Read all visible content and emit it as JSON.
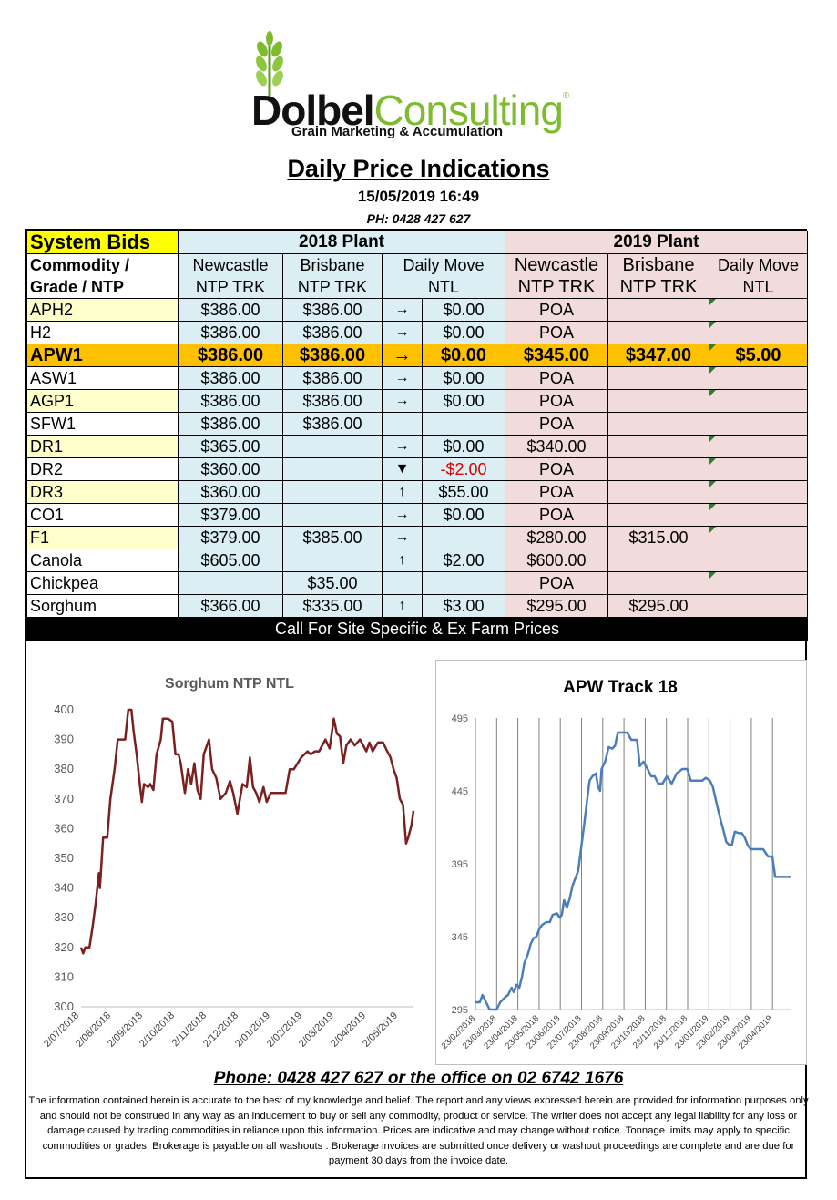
{
  "logo": {
    "brand_bold": "Dolbel",
    "brand_light": "Consulting",
    "reg": "®",
    "tagline": "Grain Marketing & Accumulation"
  },
  "title": "Daily Price Indications",
  "datetime": "15/05/2019 16:49",
  "phone_top": "PH: 0428 427 627",
  "table": {
    "system_bids": "System Bids",
    "plant_2018": "2018 Plant",
    "plant_2019": "2019 Plant",
    "commodity_header": "Commodity / Grade / NTP",
    "col_newcastle_2018": "Newcastle NTP TRK",
    "col_brisbane_2018": "Brisbane NTP TRK",
    "col_daily_move_2018": "Daily  Move NTL",
    "col_newcastle_2019": "Newcastle NTP TRK",
    "col_brisbane_2019": "Brisbane NTP TRK",
    "col_daily_move_2019": "Daily Move NTL",
    "rows": [
      {
        "grade": "APH2",
        "n18": "$386.00",
        "b18": "$386.00",
        "arrow": "→",
        "move": "$0.00",
        "n19": "POA",
        "b19": "",
        "m19": "",
        "style": "yel"
      },
      {
        "grade": "H2",
        "n18": "$386.00",
        "b18": "$386.00",
        "arrow": "→",
        "move": "$0.00",
        "n19": "POA",
        "b19": "",
        "m19": "",
        "style": "white"
      },
      {
        "grade": "APW1",
        "n18": "$386.00",
        "b18": "$386.00",
        "arrow": "→",
        "move": "$0.00",
        "n19": "$345.00",
        "b19": "$347.00",
        "m19": "$5.00",
        "style": "apw"
      },
      {
        "grade": "ASW1",
        "n18": "$386.00",
        "b18": "$386.00",
        "arrow": "→",
        "move": "$0.00",
        "n19": "POA",
        "b19": "",
        "m19": "",
        "style": "white"
      },
      {
        "grade": "AGP1",
        "n18": "$386.00",
        "b18": "$386.00",
        "arrow": "→",
        "move": "$0.00",
        "n19": "POA",
        "b19": "",
        "m19": "",
        "style": "yel"
      },
      {
        "grade": "SFW1",
        "n18": "$386.00",
        "b18": "$386.00",
        "arrow": "",
        "move": "",
        "n19": "POA",
        "b19": "",
        "m19": "",
        "style": "white"
      },
      {
        "grade": "DR1",
        "n18": "$365.00",
        "b18": "",
        "arrow": "→",
        "move": "$0.00",
        "n19": "$340.00",
        "b19": "",
        "m19": "",
        "style": "yel"
      },
      {
        "grade": "DR2",
        "n18": "$360.00",
        "b18": "",
        "arrow": "▼",
        "move": "-$2.00",
        "n19": "POA",
        "b19": "",
        "m19": "",
        "style": "white",
        "neg": true
      },
      {
        "grade": "DR3",
        "n18": "$360.00",
        "b18": "",
        "arrow": "↑",
        "move": "$55.00",
        "n19": "POA",
        "b19": "",
        "m19": "",
        "style": "yel"
      },
      {
        "grade": "CO1",
        "n18": "$379.00",
        "b18": "",
        "arrow": "→",
        "move": "$0.00",
        "n19": "POA",
        "b19": "",
        "m19": "",
        "style": "white"
      },
      {
        "grade": "F1",
        "n18": "$379.00",
        "b18": "$385.00",
        "arrow": "→",
        "move": "",
        "n19": "$280.00",
        "b19": "$315.00",
        "m19": "",
        "style": "yel"
      },
      {
        "grade": "Canola",
        "n18": "$605.00",
        "b18": "",
        "arrow": "↑",
        "move": "$2.00",
        "n19": "$600.00",
        "b19": "",
        "m19": "",
        "style": "white"
      },
      {
        "grade": "Chickpea",
        "n18": "",
        "b18": "$35.00",
        "arrow": "",
        "move": "",
        "n19": "POA",
        "b19": "",
        "m19": "",
        "style": "white"
      },
      {
        "grade": "Sorghum",
        "n18": "$366.00",
        "b18": "$335.00",
        "arrow": "↑",
        "move": "$3.00",
        "n19": "$295.00",
        "b19": "$295.00",
        "m19": "",
        "style": "white"
      }
    ],
    "call_bar": "Call For Site Specific & Ex Farm Prices"
  },
  "colors": {
    "sorghum_line": "#7b1f1f",
    "apw_line": "#4a7ebb",
    "highlight": "#ffc000",
    "blue": "#daeef3",
    "pink": "#f2dcdb",
    "yellow_cell": "#ffffcc"
  },
  "chart_data": [
    {
      "type": "line",
      "title": "Sorghum NTP NTL",
      "ylim": [
        300,
        400
      ],
      "yticks": [
        300,
        310,
        320,
        330,
        340,
        350,
        360,
        370,
        380,
        390,
        400
      ],
      "xtick_labels": [
        "2/07/2018",
        "2/08/2018",
        "2/09/2018",
        "2/10/2018",
        "2/11/2018",
        "2/12/2018",
        "2/01/2019",
        "2/02/2019",
        "2/03/2019",
        "2/04/2019",
        "2/05/2019"
      ],
      "x_start": "2018-07-02",
      "x_end": "2019-05-15",
      "series": [
        {
          "points": [
            [
              "2018-07-02",
              320
            ],
            [
              "2018-07-04",
              318
            ],
            [
              "2018-07-06",
              320
            ],
            [
              "2018-07-10",
              320
            ],
            [
              "2018-07-13",
              327
            ],
            [
              "2018-07-16",
              335
            ],
            [
              "2018-07-19",
              345
            ],
            [
              "2018-07-20",
              340
            ],
            [
              "2018-07-23",
              357
            ],
            [
              "2018-07-27",
              357
            ],
            [
              "2018-07-30",
              370
            ],
            [
              "2018-08-03",
              380
            ],
            [
              "2018-08-06",
              390
            ],
            [
              "2018-08-13",
              390
            ],
            [
              "2018-08-16",
              400
            ],
            [
              "2018-08-19",
              400
            ],
            [
              "2018-08-21",
              393
            ],
            [
              "2018-08-24",
              385
            ],
            [
              "2018-08-27",
              375
            ],
            [
              "2018-08-29",
              369
            ],
            [
              "2018-08-31",
              375
            ],
            [
              "2018-09-04",
              374
            ],
            [
              "2018-09-06",
              375
            ],
            [
              "2018-09-09",
              373
            ],
            [
              "2018-09-12",
              385
            ],
            [
              "2018-09-16",
              390
            ],
            [
              "2018-09-18",
              397
            ],
            [
              "2018-09-23",
              397
            ],
            [
              "2018-09-27",
              396
            ],
            [
              "2018-09-30",
              385
            ],
            [
              "2018-10-03",
              385
            ],
            [
              "2018-10-05",
              382
            ],
            [
              "2018-10-09",
              372
            ],
            [
              "2018-10-12",
              380
            ],
            [
              "2018-10-15",
              375
            ],
            [
              "2018-10-18",
              382
            ],
            [
              "2018-10-21",
              373
            ],
            [
              "2018-10-24",
              370
            ],
            [
              "2018-10-27",
              385
            ],
            [
              "2018-11-01",
              390
            ],
            [
              "2018-11-04",
              380
            ],
            [
              "2018-11-08",
              377
            ],
            [
              "2018-11-12",
              370
            ],
            [
              "2018-11-17",
              372
            ],
            [
              "2018-11-21",
              376
            ],
            [
              "2018-11-24",
              372
            ],
            [
              "2018-11-28",
              365
            ],
            [
              "2018-12-03",
              375
            ],
            [
              "2018-12-07",
              374
            ],
            [
              "2018-12-10",
              384
            ],
            [
              "2018-12-13",
              374
            ],
            [
              "2018-12-16",
              372
            ],
            [
              "2018-12-19",
              369
            ],
            [
              "2018-12-23",
              374
            ],
            [
              "2018-12-26",
              369
            ],
            [
              "2018-12-30",
              372
            ],
            [
              "2019-01-06",
              372
            ],
            [
              "2019-01-13",
              372
            ],
            [
              "2019-01-17",
              380
            ],
            [
              "2019-01-21",
              380
            ],
            [
              "2019-01-28",
              384
            ],
            [
              "2019-02-03",
              386
            ],
            [
              "2019-02-06",
              385
            ],
            [
              "2019-02-10",
              386
            ],
            [
              "2019-02-14",
              386
            ],
            [
              "2019-02-17",
              388
            ],
            [
              "2019-02-20",
              390
            ],
            [
              "2019-02-24",
              387
            ],
            [
              "2019-02-28",
              397
            ],
            [
              "2019-03-03",
              392
            ],
            [
              "2019-03-06",
              391
            ],
            [
              "2019-03-09",
              382
            ],
            [
              "2019-03-12",
              388
            ],
            [
              "2019-03-16",
              390
            ],
            [
              "2019-03-20",
              388
            ],
            [
              "2019-03-25",
              390
            ],
            [
              "2019-03-31",
              386
            ],
            [
              "2019-04-03",
              389
            ],
            [
              "2019-04-06",
              386
            ],
            [
              "2019-04-11",
              389
            ],
            [
              "2019-04-16",
              389
            ],
            [
              "2019-04-20",
              386
            ],
            [
              "2019-04-23",
              384
            ],
            [
              "2019-04-26",
              380
            ],
            [
              "2019-04-29",
              377
            ],
            [
              "2019-05-02",
              370
            ],
            [
              "2019-05-05",
              368
            ],
            [
              "2019-05-08",
              355
            ],
            [
              "2019-05-10",
              357
            ],
            [
              "2019-05-13",
              361
            ],
            [
              "2019-05-15",
              366
            ]
          ]
        }
      ]
    },
    {
      "type": "line",
      "title": "APW Track 18",
      "ylim": [
        295,
        495
      ],
      "yticks": [
        295,
        345,
        395,
        445,
        495
      ],
      "xtick_labels": [
        "23/02/2018",
        "23/03/2018",
        "23/04/2018",
        "23/05/2018",
        "23/06/2018",
        "23/07/2018",
        "23/08/2018",
        "23/09/2018",
        "23/10/2018",
        "23/11/2018",
        "23/12/2018",
        "23/01/2019",
        "23/02/2019",
        "23/03/2019",
        "23/04/2019"
      ],
      "x_start": "2018-02-23",
      "x_end": "2019-05-15",
      "series": [
        {
          "points": [
            [
              "2018-02-23",
              300
            ],
            [
              "2018-03-01",
              300
            ],
            [
              "2018-03-05",
              305
            ],
            [
              "2018-03-10",
              300
            ],
            [
              "2018-03-15",
              295
            ],
            [
              "2018-03-25",
              295
            ],
            [
              "2018-03-30",
              300
            ],
            [
              "2018-04-05",
              303
            ],
            [
              "2018-04-10",
              305
            ],
            [
              "2018-04-15",
              310
            ],
            [
              "2018-04-18",
              307
            ],
            [
              "2018-04-22",
              312
            ],
            [
              "2018-04-26",
              310
            ],
            [
              "2018-04-30",
              318
            ],
            [
              "2018-05-03",
              327
            ],
            [
              "2018-05-08",
              333
            ],
            [
              "2018-05-12",
              340
            ],
            [
              "2018-05-16",
              344
            ],
            [
              "2018-05-20",
              345
            ],
            [
              "2018-05-24",
              350
            ],
            [
              "2018-05-28",
              353
            ],
            [
              "2018-06-03",
              355
            ],
            [
              "2018-06-08",
              355
            ],
            [
              "2018-06-12",
              360
            ],
            [
              "2018-06-18",
              361
            ],
            [
              "2018-06-22",
              358
            ],
            [
              "2018-06-25",
              360
            ],
            [
              "2018-06-28",
              370
            ],
            [
              "2018-07-02",
              365
            ],
            [
              "2018-07-06",
              371
            ],
            [
              "2018-07-10",
              380
            ],
            [
              "2018-07-14",
              385
            ],
            [
              "2018-07-18",
              390
            ],
            [
              "2018-07-22",
              405
            ],
            [
              "2018-07-26",
              420
            ],
            [
              "2018-07-31",
              440
            ],
            [
              "2018-08-03",
              452
            ],
            [
              "2018-08-07",
              455
            ],
            [
              "2018-08-12",
              457
            ],
            [
              "2018-08-15",
              448
            ],
            [
              "2018-08-18",
              445
            ],
            [
              "2018-08-20",
              460
            ],
            [
              "2018-08-25",
              465
            ],
            [
              "2018-08-30",
              475
            ],
            [
              "2018-09-04",
              474
            ],
            [
              "2018-09-08",
              476
            ],
            [
              "2018-09-12",
              485
            ],
            [
              "2018-09-20",
              485
            ],
            [
              "2018-09-25",
              485
            ],
            [
              "2018-10-01",
              480
            ],
            [
              "2018-10-09",
              480
            ],
            [
              "2018-10-13",
              462
            ],
            [
              "2018-10-18",
              465
            ],
            [
              "2018-10-24",
              460
            ],
            [
              "2018-10-29",
              455
            ],
            [
              "2018-11-03",
              455
            ],
            [
              "2018-11-08",
              450
            ],
            [
              "2018-11-14",
              450
            ],
            [
              "2018-11-20",
              455
            ],
            [
              "2018-11-27",
              450
            ],
            [
              "2018-12-04",
              457
            ],
            [
              "2018-12-12",
              460
            ],
            [
              "2018-12-19",
              460
            ],
            [
              "2018-12-24",
              452
            ],
            [
              "2019-01-02",
              452
            ],
            [
              "2019-01-09",
              452
            ],
            [
              "2019-01-14",
              454
            ],
            [
              "2019-01-20",
              452
            ],
            [
              "2019-01-24",
              448
            ],
            [
              "2019-01-30",
              435
            ],
            [
              "2019-02-04",
              425
            ],
            [
              "2019-02-08",
              418
            ],
            [
              "2019-02-12",
              410
            ],
            [
              "2019-02-16",
              408
            ],
            [
              "2019-02-20",
              408
            ],
            [
              "2019-02-24",
              417
            ],
            [
              "2019-03-02",
              416
            ],
            [
              "2019-03-06",
              416
            ],
            [
              "2019-03-10",
              413
            ],
            [
              "2019-03-14",
              408
            ],
            [
              "2019-03-18",
              405
            ],
            [
              "2019-03-28",
              405
            ],
            [
              "2019-04-05",
              405
            ],
            [
              "2019-04-12",
              400
            ],
            [
              "2019-04-18",
              400
            ],
            [
              "2019-04-22",
              386
            ],
            [
              "2019-05-01",
              386
            ],
            [
              "2019-05-15",
              386
            ]
          ]
        }
      ]
    }
  ],
  "phone_bottom": "Phone: 0428 427 627 or the office on 02 6742 1676",
  "disclaimer": "The information contained herein is accurate to the best of my knowledge and belief.  The report and any views expressed herein are provided for information purposes only and should not be construed in any way as an inducement to buy or sell any commodity, product or service. The writer does not accept any legal liability for any loss or damage caused by trading commodities in reliance upon this information. Prices are indicative and may change without notice. Tonnage limits may apply to specific commodities or grades.  Brokerage is payable on all washouts . Brokerage invoices are submitted once delivery or washout proceedings are complete and are due for payment 30 days from the invoice date."
}
